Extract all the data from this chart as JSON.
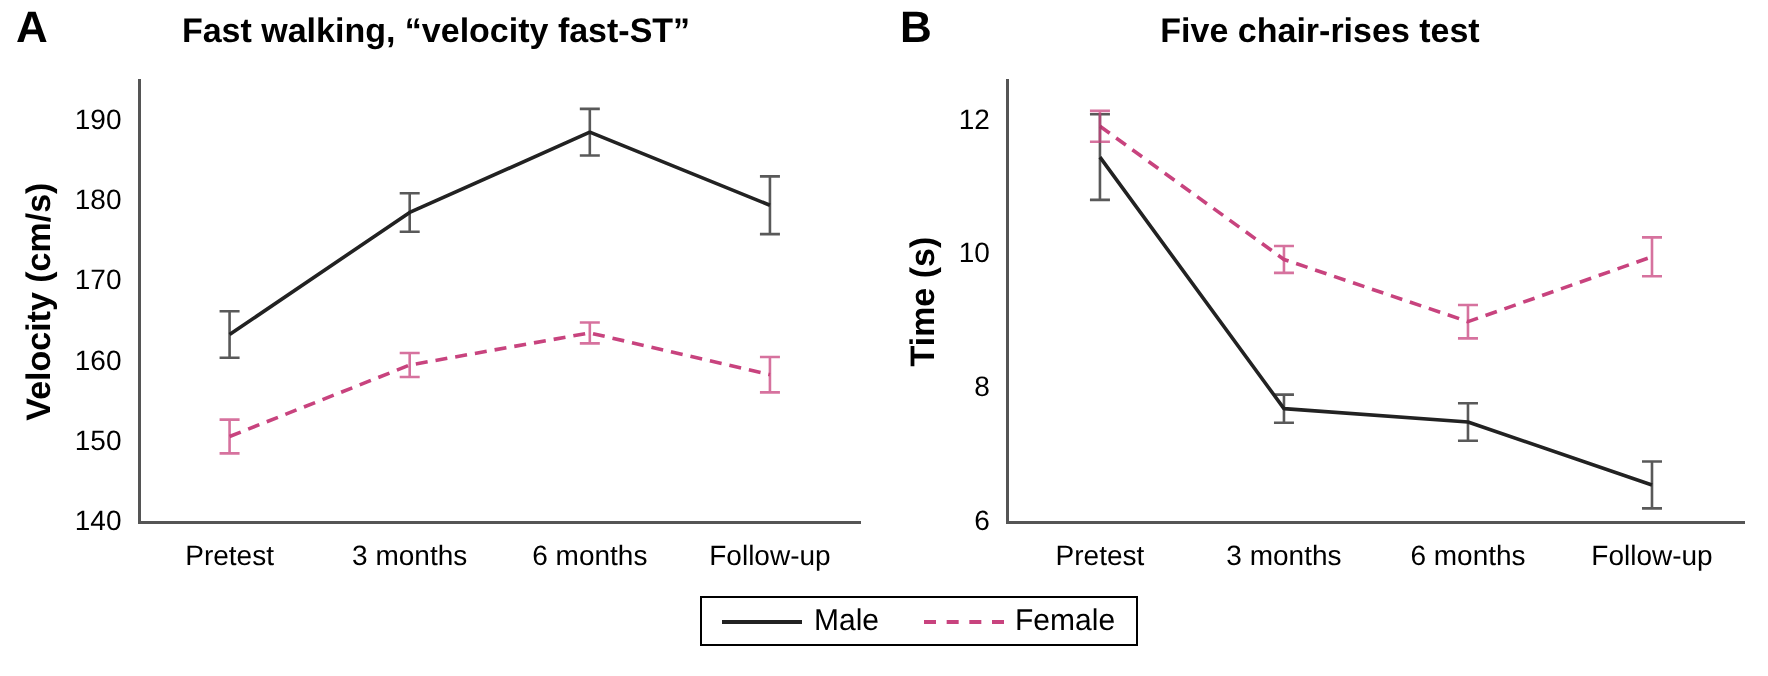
{
  "chart_data": [
    {
      "type": "line",
      "title": "Fast walking, “velocity fast-ST”",
      "ylabel": "Velocity (cm/s)",
      "annotations": [
        "A"
      ],
      "categories": [
        "Pretest",
        "3 months",
        "6 months",
        "Follow-up"
      ],
      "ylim": [
        140,
        195
      ],
      "yticks": [
        140,
        150,
        160,
        170,
        180,
        190
      ],
      "grid": false,
      "legend": "bottom",
      "series": [
        {
          "name": "Male",
          "color": "#222222",
          "line_style": "solid",
          "values": [
            163.4,
            178.6,
            188.6,
            179.5
          ],
          "errors": [
            2.9,
            2.4,
            2.9,
            3.6
          ]
        },
        {
          "name": "Female",
          "color": "#c8437e",
          "line_style": "dashed",
          "values": [
            150.7,
            159.6,
            163.6,
            158.4
          ],
          "errors": [
            2.1,
            1.5,
            1.3,
            2.2
          ]
        }
      ]
    },
    {
      "type": "line",
      "title": "Five chair-rises test",
      "ylabel": "Time (s)",
      "annotations": [
        "B"
      ],
      "categories": [
        "Pretest",
        "3 months",
        "6 months",
        "Follow-up"
      ],
      "ylim": [
        6,
        12.6
      ],
      "yticks": [
        6,
        8,
        10,
        12
      ],
      "grid": false,
      "series": [
        {
          "color": "#222222",
          "line_style": "solid",
          "values": [
            11.46,
            7.7,
            7.5,
            6.56
          ],
          "errors": [
            0.64,
            0.21,
            0.28,
            0.35
          ]
        },
        {
          "color": "#c8437e",
          "line_style": "dashed",
          "values": [
            11.92,
            9.93,
            9.0,
            9.97
          ],
          "errors": [
            0.23,
            0.2,
            0.25,
            0.29
          ]
        }
      ]
    }
  ]
}
